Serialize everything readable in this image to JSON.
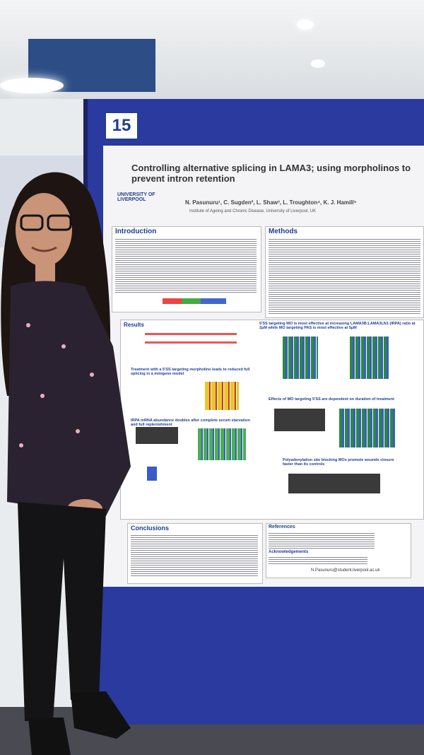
{
  "poster": {
    "number": "15",
    "university": "UNIVERSITY OF LIVERPOOL",
    "title": "Controlling alternative splicing in LAMA3; using morpholinos to prevent intron retention",
    "authors": "N. Pasunuru¹, C. Sugden², L. Shaw³, L. Troughton⁴, K. J. Hamill⁵",
    "affiliation": "Institute of Ageing and Chronic Disease, University of Liverpool, UK",
    "sections": {
      "introduction": "Introduction",
      "methods": "Methods",
      "results": "Results",
      "conclusions": "Conclusions",
      "references": "References",
      "acknowledgements": "Acknowledgements"
    },
    "results_headings": [
      "5'SS targeting MO is most effective at increasing LAMA3B:LAMA3LN1 (IRPA) ratio at 2μM while MO targeting PAS is most effective at 5μM",
      "Treatment with a 5'SS targeting morpholino leads to reduced full splicing in a minigene model",
      "Effects of MO targeting 5'SS are dependent on duration of treatment",
      "IRPA mRNA abundance doubles after complete serum starvation and full replenishment",
      "Polyadenylation site blocking MOs promote wounds closure faster than its controls"
    ],
    "email": "N.Pasunuru@student.liverpool.ac.uk"
  }
}
